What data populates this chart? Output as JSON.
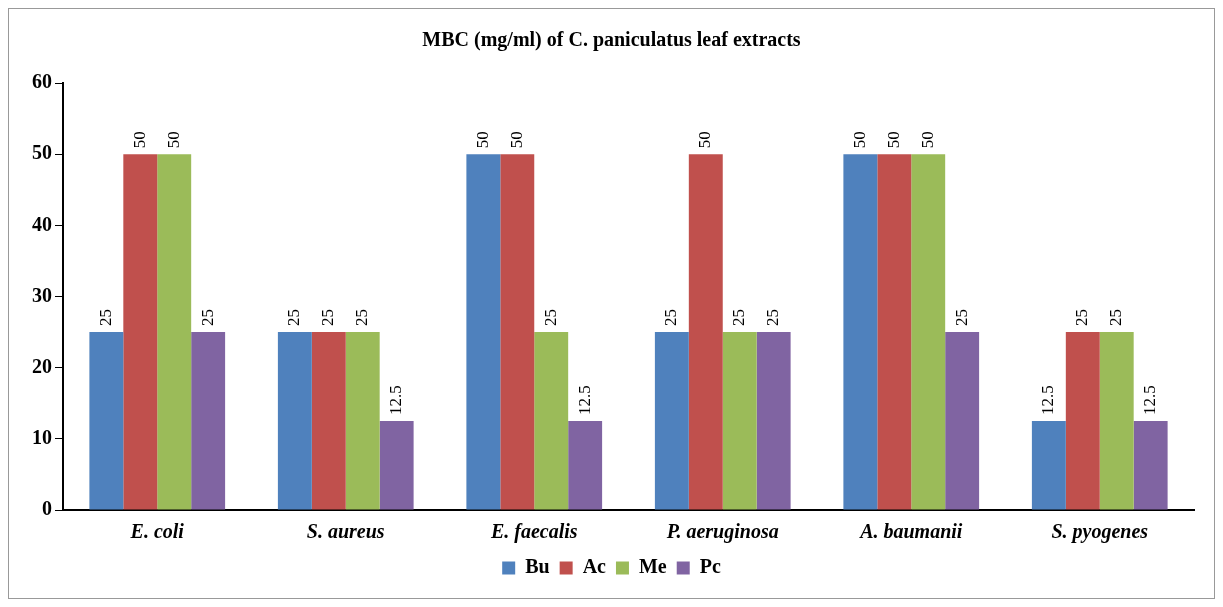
{
  "chart_data": {
    "type": "bar",
    "title": "MBC (mg/ml) of C. paniculatus leaf extracts",
    "categories": [
      "E. coli",
      "S. aureus",
      "E. faecalis",
      "P. aeruginosa",
      "A. baumanii",
      "S. pyogenes"
    ],
    "series": [
      {
        "name": "Bu",
        "color": "#4f81bd",
        "values": [
          25,
          25,
          50,
          25,
          50,
          12.5
        ]
      },
      {
        "name": "Ac",
        "color": "#c0504d",
        "values": [
          50,
          25,
          50,
          50,
          50,
          25
        ]
      },
      {
        "name": "Me",
        "color": "#9bbb59",
        "values": [
          50,
          25,
          25,
          25,
          50,
          25
        ]
      },
      {
        "name": "Pc",
        "color": "#8064a2",
        "values": [
          25,
          12.5,
          12.5,
          25,
          25,
          12.5
        ]
      }
    ],
    "ylim": [
      0,
      60
    ],
    "yticks": [
      0,
      10,
      20,
      30,
      40,
      50,
      60
    ],
    "grid": false,
    "legend": "bottom",
    "data_labels": true
  }
}
